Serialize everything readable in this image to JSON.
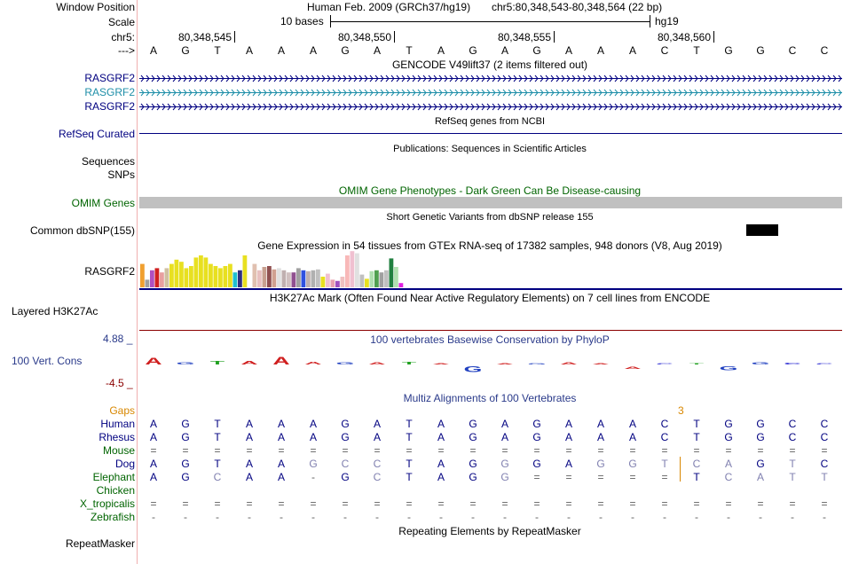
{
  "colors": {
    "navy": "#000080",
    "teal": "#1f8fa8",
    "green": "#006400",
    "orange": "#d88700",
    "darkred": "#8b0000",
    "divider": "#f0b0b0",
    "gray": "#c0c0c0"
  },
  "header": {
    "window_position_label": "Window Position",
    "assembly_text": "Human Feb. 2009 (GRCh37/hg19)",
    "position_text": "chr5:80,348,543-80,348,564 (22 bp)",
    "scale_label": "Scale",
    "scale_bar_text": "10 bases",
    "scale_db": "hg19",
    "chrom_label": "chr5:",
    "coord_ticks": [
      "80,348,545",
      "80,348,550",
      "80,348,555",
      "80,348,560"
    ],
    "arrow_label": "--->"
  },
  "sequence": [
    "A",
    "G",
    "T",
    "A",
    "A",
    "A",
    "G",
    "A",
    "T",
    "A",
    "G",
    "A",
    "G",
    "A",
    "A",
    "A",
    "C",
    "T",
    "G",
    "G",
    "C",
    "C"
  ],
  "gencode": {
    "title": "GENCODE V49lift37 (2 items filtered out)",
    "tracks": [
      {
        "label": "RASGRF2",
        "color": "navy"
      },
      {
        "label": "RASGRF2",
        "color": "teal"
      },
      {
        "label": "RASGRF2",
        "color": "navy"
      }
    ]
  },
  "refseq": {
    "title": "RefSeq genes from NCBI",
    "label": "RefSeq Curated"
  },
  "publications": {
    "title": "Publications: Sequences in Scientific Articles",
    "label_sequences": "Sequences",
    "label_snps": "SNPs"
  },
  "omim": {
    "title": "OMIM Gene Phenotypes - Dark Green Can Be Disease-causing",
    "label": "OMIM Genes"
  },
  "dbsnp": {
    "title": "Short Genetic Variants from dbSNP release 155",
    "label": "Common dbSNP(155)"
  },
  "gtex": {
    "title": "Gene Expression in 54 tissues from GTEx RNA-seq of 17382 samples, 948 donors (V8, Aug 2019)",
    "label": "RASGRF2",
    "expression": [
      55,
      18,
      40,
      45,
      35,
      45,
      55,
      65,
      60,
      45,
      50,
      70,
      75,
      70,
      55,
      50,
      45,
      50,
      55,
      35,
      40,
      75,
      25,
      55,
      40,
      48,
      50,
      42,
      45,
      40,
      35,
      35,
      45,
      40,
      38,
      40,
      42,
      25,
      32,
      18,
      15,
      25,
      75,
      85,
      80,
      30,
      20,
      38,
      40,
      35,
      40,
      68,
      48,
      10
    ],
    "bar_colors": [
      "#f0a030",
      "#a0a0a0",
      "#b050c0",
      "#d02020",
      "#e8a0a0",
      "#d0c0a0",
      "#e8e020",
      "#e8e020",
      "#e8e020",
      "#e8e020",
      "#e8e020",
      "#e8e020",
      "#e8e020",
      "#e8e020",
      "#e8e020",
      "#e8e020",
      "#e8e020",
      "#e8e020",
      "#e8e020",
      "#20c0d0",
      "#303080",
      "#e8e020",
      "#ffffff",
      "#e0c0b0",
      "#e8c0c0",
      "#c8a090",
      "#905050",
      "#d0a090",
      "#e0e0e0",
      "#c0b0b0",
      "#d0c0c0",
      "#905090",
      "#a0a0a0",
      "#3050e0",
      "#c0b0b0",
      "#b0b0b0",
      "#c0c0c0",
      "#e8e020",
      "#f0c0d0",
      "#e8a0b0",
      "#a050c0",
      "#f0c0c0",
      "#f8b8b8",
      "#f0c0d0",
      "#e0e0e0",
      "#c0c0c0",
      "#e8e020",
      "#b0e0b0",
      "#50a050",
      "#a0a0a0",
      "#c0c0c0",
      "#208040",
      "#b0e0b0",
      "#e020e0"
    ]
  },
  "h3k27ac": {
    "title": "H3K27Ac Mark (Often Found Near Active Regulatory Elements) on 7 cell lines from ENCODE",
    "label": "Layered H3K27Ac"
  },
  "conservation": {
    "title": "100 vertebrates Basewise Conservation by PhyloP",
    "label": "100 Vert. Cons",
    "max_label": "4.88 _",
    "min_label": "-4.5 _",
    "phylop": [
      2.0,
      0.5,
      0.9,
      0.8,
      2.1,
      0.6,
      0.5,
      0.5,
      0.7,
      0.0,
      -1.6,
      0.0,
      0.0,
      0.5,
      0.0,
      -0.5,
      0.0,
      0.0,
      -1.0,
      0.5,
      0.3,
      0.0
    ]
  },
  "multiz": {
    "title": "Multiz Alignments of 100 Vertebrates",
    "gaps_label": "Gaps",
    "gap_marker": "3",
    "species": [
      {
        "name": "Human",
        "color": "navy",
        "bases": [
          "A",
          "G",
          "T",
          "A",
          "A",
          "A",
          "G",
          "A",
          "T",
          "A",
          "G",
          "A",
          "G",
          "A",
          "A",
          "A",
          "C",
          "T",
          "G",
          "G",
          "C",
          "C"
        ]
      },
      {
        "name": "Rhesus",
        "color": "navy",
        "bases": [
          "A",
          "G",
          "T",
          "A",
          "A",
          "A",
          "G",
          "A",
          "T",
          "A",
          "G",
          "A",
          "G",
          "A",
          "A",
          "A",
          "C",
          "T",
          "G",
          "G",
          "C",
          "C"
        ]
      },
      {
        "name": "Mouse",
        "color": "green",
        "bases": [
          "=",
          "=",
          "=",
          "=",
          "=",
          "=",
          "=",
          "=",
          "=",
          "=",
          "=",
          "=",
          "=",
          "=",
          "=",
          "=",
          "=",
          "=",
          "=",
          "=",
          "=",
          "="
        ]
      },
      {
        "name": "Dog",
        "color": "navy",
        "bases": [
          "A",
          "G",
          "T",
          "A",
          "A",
          "G",
          "C",
          "C",
          "T",
          "A",
          "G",
          "G",
          "G",
          "A",
          "G",
          "G",
          "T",
          "C",
          "A",
          "G",
          "T",
          "C"
        ]
      },
      {
        "name": "Elephant",
        "color": "green",
        "bases": [
          "A",
          "G",
          "C",
          "A",
          "A",
          "-",
          "G",
          "C",
          "T",
          "A",
          "G",
          "G",
          "=",
          "=",
          "=",
          "=",
          "=",
          "T",
          "C",
          "A",
          "T",
          "T"
        ]
      },
      {
        "name": "Chicken",
        "color": "green",
        "bases": [
          "",
          "",
          "",
          "",
          "",
          "",
          "",
          "",
          "",
          "",
          "",
          "",
          "",
          "",
          "",
          "",
          "",
          "",
          "",
          "",
          "",
          ""
        ]
      },
      {
        "name": "X_tropicalis",
        "color": "green",
        "bases": [
          "=",
          "=",
          "=",
          "=",
          "=",
          "=",
          "=",
          "=",
          "=",
          "=",
          "=",
          "=",
          "=",
          "=",
          "=",
          "=",
          "=",
          "=",
          "=",
          "=",
          "=",
          "="
        ]
      },
      {
        "name": "Zebrafish",
        "color": "green",
        "bases": [
          "-",
          "-",
          "-",
          "-",
          "-",
          "-",
          "-",
          "-",
          "-",
          "-",
          "-",
          "-",
          "-",
          "-",
          "-",
          "-",
          "-",
          "-",
          "-",
          "-",
          "-",
          "-"
        ]
      }
    ]
  },
  "repeatmasker": {
    "title": "Repeating Elements by RepeatMasker",
    "label": "RepeatMasker"
  }
}
